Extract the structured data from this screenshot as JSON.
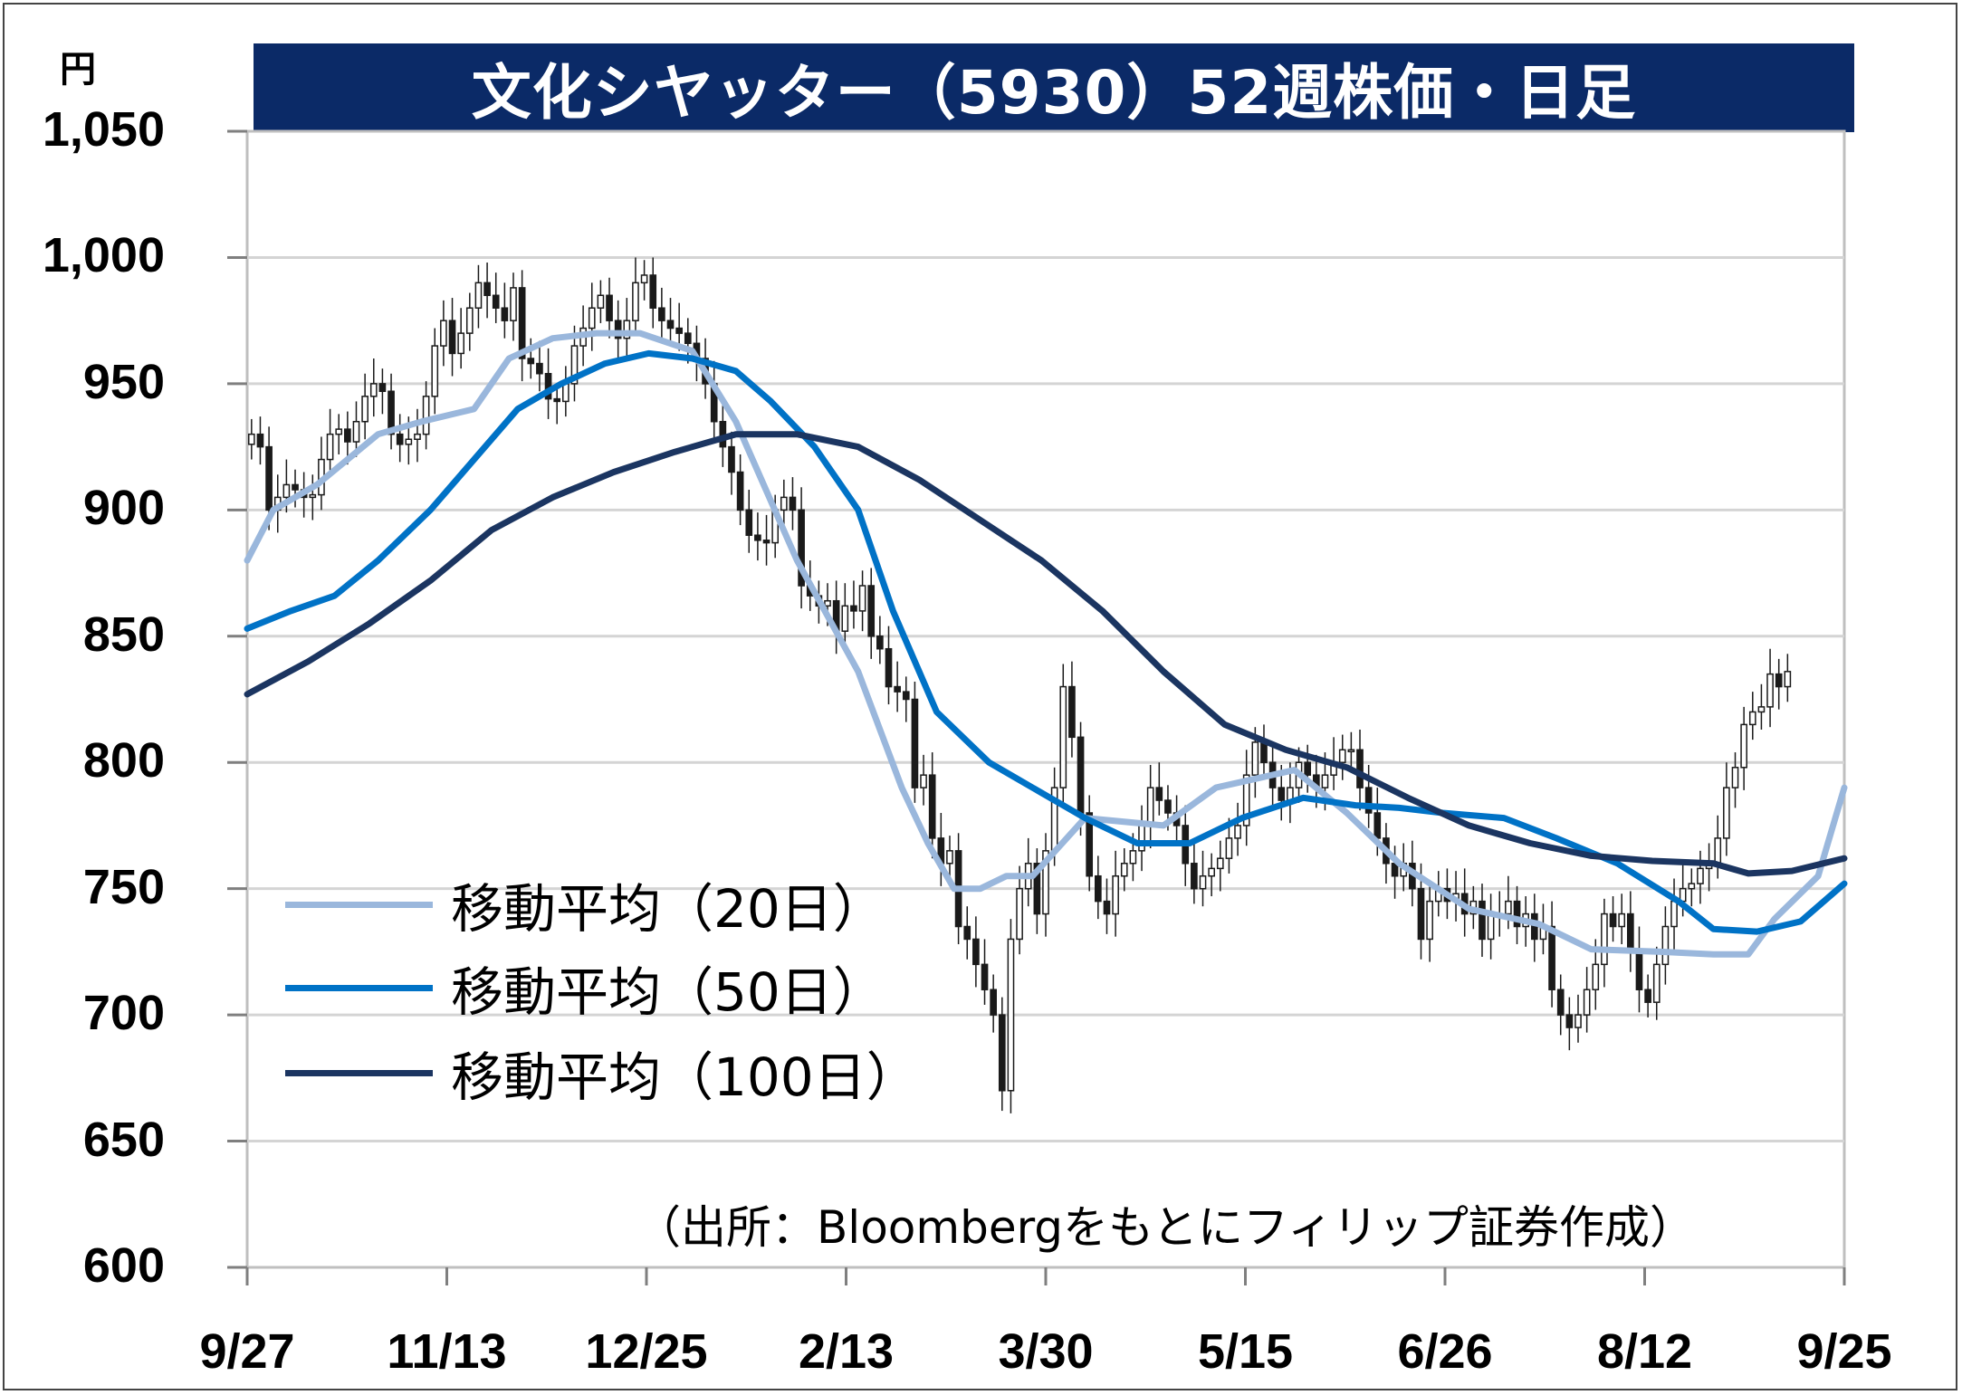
{
  "chart_data": {
    "type": "line",
    "subtype": "candlestick-with-moving-averages",
    "title": "文化シヤッター（5930）52週株価・日足",
    "y_unit": "円",
    "ylim": [
      600,
      1050
    ],
    "y_ticks": [
      "1,050",
      "1,000",
      "950",
      "900",
      "850",
      "800",
      "750",
      "700",
      "650",
      "600"
    ],
    "x_ticks": [
      "9/27",
      "11/13",
      "12/25",
      "2/13",
      "3/30",
      "5/15",
      "6/26",
      "8/12",
      "9/25"
    ],
    "grid": true,
    "legend_position": "bottom-left",
    "source": "（出所：Bloombergをもとにフィリップ証券作成）",
    "series": [
      {
        "name": "移動平均（20日）",
        "color": "#9ab7dc",
        "points": [
          [
            0,
            880
          ],
          [
            3,
            900
          ],
          [
            8,
            910
          ],
          [
            15,
            930
          ],
          [
            20,
            935
          ],
          [
            26,
            940
          ],
          [
            30,
            960
          ],
          [
            35,
            968
          ],
          [
            40,
            970
          ],
          [
            45,
            970
          ],
          [
            51,
            963
          ],
          [
            56,
            935
          ],
          [
            63,
            880
          ],
          [
            70,
            836
          ],
          [
            75,
            790
          ],
          [
            78,
            768
          ],
          [
            81,
            750
          ],
          [
            84,
            750
          ],
          [
            87,
            755
          ],
          [
            90,
            755
          ],
          [
            96,
            778
          ],
          [
            105,
            775
          ],
          [
            111,
            790
          ],
          [
            120,
            797
          ],
          [
            126,
            780
          ],
          [
            132,
            760
          ],
          [
            140,
            742
          ],
          [
            148,
            736
          ],
          [
            154,
            726
          ],
          [
            162,
            725
          ],
          [
            168,
            724
          ],
          [
            172,
            724
          ],
          [
            175,
            738
          ],
          [
            180,
            755
          ],
          [
            183,
            790
          ]
        ]
      },
      {
        "name": "移動平均（50日）",
        "color": "#0072c6",
        "points": [
          [
            0,
            853
          ],
          [
            5,
            860
          ],
          [
            10,
            866
          ],
          [
            15,
            880
          ],
          [
            21,
            900
          ],
          [
            26,
            920
          ],
          [
            31,
            940
          ],
          [
            36,
            950
          ],
          [
            41,
            958
          ],
          [
            46,
            962
          ],
          [
            51,
            960
          ],
          [
            56,
            955
          ],
          [
            60,
            943
          ],
          [
            65,
            925
          ],
          [
            70,
            900
          ],
          [
            74,
            860
          ],
          [
            79,
            820
          ],
          [
            85,
            800
          ],
          [
            90,
            790
          ],
          [
            96,
            778
          ],
          [
            102,
            768
          ],
          [
            108,
            768
          ],
          [
            114,
            778
          ],
          [
            121,
            786
          ],
          [
            127,
            783
          ],
          [
            132,
            782
          ],
          [
            137,
            780
          ],
          [
            144,
            778
          ],
          [
            150,
            770
          ],
          [
            157,
            760
          ],
          [
            164,
            745
          ],
          [
            168,
            734
          ],
          [
            173,
            733
          ],
          [
            178,
            737
          ],
          [
            183,
            752
          ]
        ]
      },
      {
        "name": "移動平均（100日）",
        "color": "#1b3561",
        "points": [
          [
            0,
            827
          ],
          [
            7,
            840
          ],
          [
            14,
            855
          ],
          [
            21,
            872
          ],
          [
            28,
            892
          ],
          [
            35,
            905
          ],
          [
            42,
            915
          ],
          [
            49,
            923
          ],
          [
            56,
            930
          ],
          [
            63,
            930
          ],
          [
            70,
            925
          ],
          [
            77,
            912
          ],
          [
            84,
            896
          ],
          [
            91,
            880
          ],
          [
            98,
            860
          ],
          [
            105,
            836
          ],
          [
            112,
            815
          ],
          [
            119,
            805
          ],
          [
            126,
            798
          ],
          [
            133,
            786
          ],
          [
            140,
            775
          ],
          [
            147,
            768
          ],
          [
            154,
            763
          ],
          [
            161,
            761
          ],
          [
            168,
            760
          ],
          [
            172,
            756
          ],
          [
            177,
            757
          ],
          [
            183,
            762
          ]
        ]
      }
    ],
    "candles_approx_close": [
      930,
      925,
      900,
      905,
      910,
      908,
      905,
      906,
      920,
      930,
      932,
      927,
      935,
      945,
      950,
      947,
      930,
      926,
      928,
      930,
      945,
      965,
      975,
      962,
      970,
      980,
      990,
      985,
      980,
      975,
      988,
      960,
      958,
      954,
      944,
      943,
      950,
      965,
      972,
      980,
      985,
      975,
      968,
      975,
      990,
      993,
      980,
      975,
      972,
      970,
      966,
      960,
      950,
      935,
      925,
      915,
      900,
      890,
      888,
      887,
      900,
      905,
      900,
      870,
      866,
      862,
      864,
      852,
      862,
      860,
      870,
      850,
      845,
      830,
      828,
      825,
      790,
      795,
      770,
      760,
      765,
      735,
      730,
      720,
      710,
      700,
      670,
      730,
      750,
      760,
      740,
      765,
      790,
      830,
      810,
      780,
      755,
      745,
      740,
      755,
      760,
      765,
      775,
      790,
      785,
      780,
      775,
      760,
      750,
      755,
      758,
      762,
      770,
      775,
      795,
      808,
      800,
      790,
      785,
      790,
      800,
      795,
      790,
      795,
      800,
      805,
      805,
      790,
      780,
      770,
      760,
      755,
      760,
      750,
      730,
      745,
      750,
      745,
      748,
      740,
      745,
      730,
      740,
      740,
      745,
      735,
      740,
      730,
      735,
      710,
      700,
      695,
      700,
      710,
      720,
      740,
      735,
      740,
      725,
      710,
      705,
      720,
      735,
      745,
      750,
      752,
      758,
      760,
      770,
      790,
      798,
      815,
      820,
      822,
      835,
      830,
      836
    ]
  }
}
